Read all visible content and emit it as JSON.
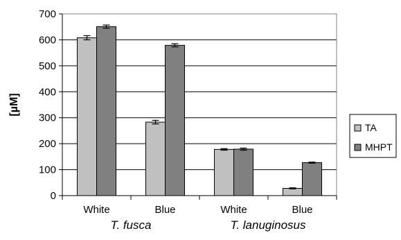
{
  "chart_data": {
    "type": "bar",
    "ylabel": "[µM]",
    "xlabel": "",
    "ylim": [
      0,
      700
    ],
    "yticks": [
      0,
      100,
      200,
      300,
      400,
      500,
      600,
      700
    ],
    "grid": "horizontal",
    "legend_position": "right",
    "categories": [
      "White",
      "Blue",
      "White",
      "Blue"
    ],
    "groups": [
      {
        "label": "T. fusca",
        "categories": [
          0,
          1
        ]
      },
      {
        "label": "T. lanuginosus",
        "categories": [
          2,
          3
        ]
      }
    ],
    "series": [
      {
        "name": "TA",
        "color": "#c0c0c0",
        "values": [
          608,
          283,
          178,
          28
        ],
        "errors": [
          8,
          7,
          3,
          2
        ]
      },
      {
        "name": "MHPT",
        "color": "#808080",
        "values": [
          651,
          579,
          179,
          127
        ],
        "errors": [
          6,
          6,
          4,
          2
        ]
      }
    ]
  }
}
